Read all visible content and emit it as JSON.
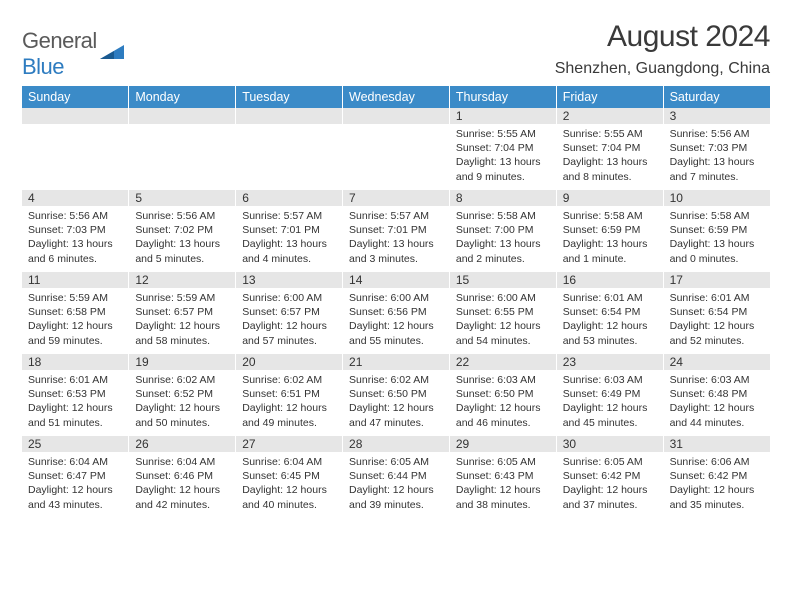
{
  "logo": {
    "part1": "General",
    "part2": "Blue"
  },
  "title": "August 2024",
  "location": "Shenzhen, Guangdong, China",
  "colors": {
    "header_bg": "#3b8bc8",
    "header_text": "#ffffff",
    "daynum_bg": "#e6e6e6",
    "text": "#333333",
    "logo_gray": "#5a5a5a",
    "logo_blue": "#2e7cc0",
    "page_bg": "#ffffff"
  },
  "typography": {
    "title_fontsize": 30,
    "location_fontsize": 16,
    "dayheader_fontsize": 12.5,
    "daynum_fontsize": 12,
    "cell_fontsize": 10.5
  },
  "day_headers": [
    "Sunday",
    "Monday",
    "Tuesday",
    "Wednesday",
    "Thursday",
    "Friday",
    "Saturday"
  ],
  "weeks": [
    [
      {
        "n": "",
        "sr": "",
        "ss": "",
        "dl": ""
      },
      {
        "n": "",
        "sr": "",
        "ss": "",
        "dl": ""
      },
      {
        "n": "",
        "sr": "",
        "ss": "",
        "dl": ""
      },
      {
        "n": "",
        "sr": "",
        "ss": "",
        "dl": ""
      },
      {
        "n": "1",
        "sr": "Sunrise: 5:55 AM",
        "ss": "Sunset: 7:04 PM",
        "dl": "Daylight: 13 hours and 9 minutes."
      },
      {
        "n": "2",
        "sr": "Sunrise: 5:55 AM",
        "ss": "Sunset: 7:04 PM",
        "dl": "Daylight: 13 hours and 8 minutes."
      },
      {
        "n": "3",
        "sr": "Sunrise: 5:56 AM",
        "ss": "Sunset: 7:03 PM",
        "dl": "Daylight: 13 hours and 7 minutes."
      }
    ],
    [
      {
        "n": "4",
        "sr": "Sunrise: 5:56 AM",
        "ss": "Sunset: 7:03 PM",
        "dl": "Daylight: 13 hours and 6 minutes."
      },
      {
        "n": "5",
        "sr": "Sunrise: 5:56 AM",
        "ss": "Sunset: 7:02 PM",
        "dl": "Daylight: 13 hours and 5 minutes."
      },
      {
        "n": "6",
        "sr": "Sunrise: 5:57 AM",
        "ss": "Sunset: 7:01 PM",
        "dl": "Daylight: 13 hours and 4 minutes."
      },
      {
        "n": "7",
        "sr": "Sunrise: 5:57 AM",
        "ss": "Sunset: 7:01 PM",
        "dl": "Daylight: 13 hours and 3 minutes."
      },
      {
        "n": "8",
        "sr": "Sunrise: 5:58 AM",
        "ss": "Sunset: 7:00 PM",
        "dl": "Daylight: 13 hours and 2 minutes."
      },
      {
        "n": "9",
        "sr": "Sunrise: 5:58 AM",
        "ss": "Sunset: 6:59 PM",
        "dl": "Daylight: 13 hours and 1 minute."
      },
      {
        "n": "10",
        "sr": "Sunrise: 5:58 AM",
        "ss": "Sunset: 6:59 PM",
        "dl": "Daylight: 13 hours and 0 minutes."
      }
    ],
    [
      {
        "n": "11",
        "sr": "Sunrise: 5:59 AM",
        "ss": "Sunset: 6:58 PM",
        "dl": "Daylight: 12 hours and 59 minutes."
      },
      {
        "n": "12",
        "sr": "Sunrise: 5:59 AM",
        "ss": "Sunset: 6:57 PM",
        "dl": "Daylight: 12 hours and 58 minutes."
      },
      {
        "n": "13",
        "sr": "Sunrise: 6:00 AM",
        "ss": "Sunset: 6:57 PM",
        "dl": "Daylight: 12 hours and 57 minutes."
      },
      {
        "n": "14",
        "sr": "Sunrise: 6:00 AM",
        "ss": "Sunset: 6:56 PM",
        "dl": "Daylight: 12 hours and 55 minutes."
      },
      {
        "n": "15",
        "sr": "Sunrise: 6:00 AM",
        "ss": "Sunset: 6:55 PM",
        "dl": "Daylight: 12 hours and 54 minutes."
      },
      {
        "n": "16",
        "sr": "Sunrise: 6:01 AM",
        "ss": "Sunset: 6:54 PM",
        "dl": "Daylight: 12 hours and 53 minutes."
      },
      {
        "n": "17",
        "sr": "Sunrise: 6:01 AM",
        "ss": "Sunset: 6:54 PM",
        "dl": "Daylight: 12 hours and 52 minutes."
      }
    ],
    [
      {
        "n": "18",
        "sr": "Sunrise: 6:01 AM",
        "ss": "Sunset: 6:53 PM",
        "dl": "Daylight: 12 hours and 51 minutes."
      },
      {
        "n": "19",
        "sr": "Sunrise: 6:02 AM",
        "ss": "Sunset: 6:52 PM",
        "dl": "Daylight: 12 hours and 50 minutes."
      },
      {
        "n": "20",
        "sr": "Sunrise: 6:02 AM",
        "ss": "Sunset: 6:51 PM",
        "dl": "Daylight: 12 hours and 49 minutes."
      },
      {
        "n": "21",
        "sr": "Sunrise: 6:02 AM",
        "ss": "Sunset: 6:50 PM",
        "dl": "Daylight: 12 hours and 47 minutes."
      },
      {
        "n": "22",
        "sr": "Sunrise: 6:03 AM",
        "ss": "Sunset: 6:50 PM",
        "dl": "Daylight: 12 hours and 46 minutes."
      },
      {
        "n": "23",
        "sr": "Sunrise: 6:03 AM",
        "ss": "Sunset: 6:49 PM",
        "dl": "Daylight: 12 hours and 45 minutes."
      },
      {
        "n": "24",
        "sr": "Sunrise: 6:03 AM",
        "ss": "Sunset: 6:48 PM",
        "dl": "Daylight: 12 hours and 44 minutes."
      }
    ],
    [
      {
        "n": "25",
        "sr": "Sunrise: 6:04 AM",
        "ss": "Sunset: 6:47 PM",
        "dl": "Daylight: 12 hours and 43 minutes."
      },
      {
        "n": "26",
        "sr": "Sunrise: 6:04 AM",
        "ss": "Sunset: 6:46 PM",
        "dl": "Daylight: 12 hours and 42 minutes."
      },
      {
        "n": "27",
        "sr": "Sunrise: 6:04 AM",
        "ss": "Sunset: 6:45 PM",
        "dl": "Daylight: 12 hours and 40 minutes."
      },
      {
        "n": "28",
        "sr": "Sunrise: 6:05 AM",
        "ss": "Sunset: 6:44 PM",
        "dl": "Daylight: 12 hours and 39 minutes."
      },
      {
        "n": "29",
        "sr": "Sunrise: 6:05 AM",
        "ss": "Sunset: 6:43 PM",
        "dl": "Daylight: 12 hours and 38 minutes."
      },
      {
        "n": "30",
        "sr": "Sunrise: 6:05 AM",
        "ss": "Sunset: 6:42 PM",
        "dl": "Daylight: 12 hours and 37 minutes."
      },
      {
        "n": "31",
        "sr": "Sunrise: 6:06 AM",
        "ss": "Sunset: 6:42 PM",
        "dl": "Daylight: 12 hours and 35 minutes."
      }
    ]
  ]
}
